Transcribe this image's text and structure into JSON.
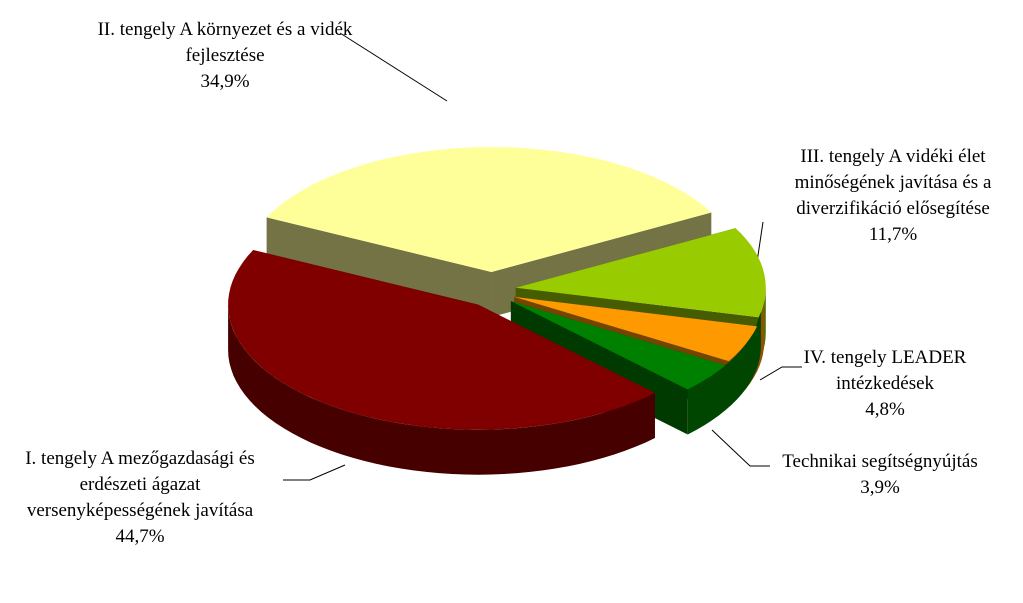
{
  "chart_data": {
    "type": "pie",
    "three_d": true,
    "exploded": true,
    "categories": [
      "I. tengely A mezőgazdasági és erdészeti ágazat versenyképességének javítása",
      "II. tengely A környezet és a vidék fejlesztése",
      "III. tengely A vidéki élet minőségének javítása és a diverzifikáció elősegítése",
      "IV. tengely LEADER intézkedések",
      "Technikai segítségnyújtás"
    ],
    "values": [
      44.7,
      34.9,
      11.7,
      4.8,
      3.9
    ],
    "value_labels": [
      "44,7%",
      "34,9%",
      "11,7%",
      "4,8%",
      "3,9%"
    ],
    "colors": [
      "#800000",
      "#ffff99",
      "#99cc00",
      "#ff9900",
      "#008000"
    ]
  }
}
